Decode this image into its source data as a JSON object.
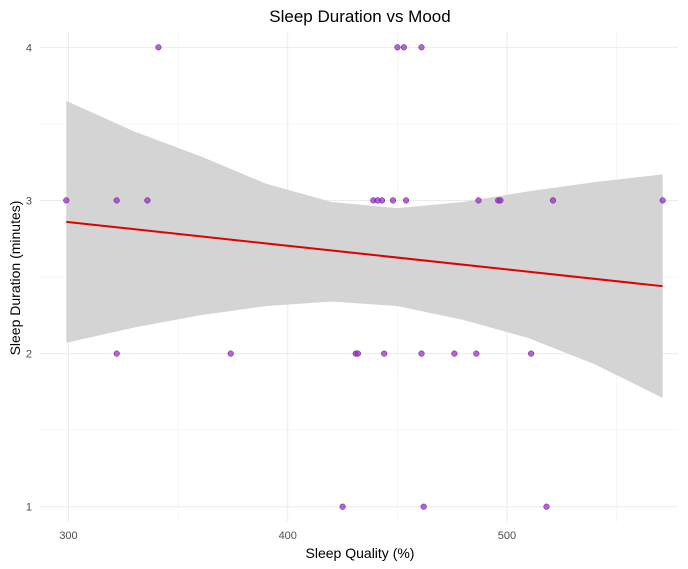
{
  "chart_data": {
    "type": "scatter",
    "title": "Sleep Duration vs Mood",
    "xlabel": "Sleep Quality (%)",
    "ylabel": "Sleep Duration (minutes)",
    "xlim": [
      287,
      578
    ],
    "ylim": [
      0.9,
      4.1
    ],
    "x_ticks": [
      300,
      400,
      500
    ],
    "y_ticks": [
      1,
      2,
      3,
      4
    ],
    "grid": true,
    "point_color": "#9b30c8",
    "line_color": "#e00000",
    "band_color": "#d4d4d4",
    "points": [
      {
        "x": 299,
        "y": 3
      },
      {
        "x": 322,
        "y": 3
      },
      {
        "x": 322,
        "y": 2
      },
      {
        "x": 336,
        "y": 3
      },
      {
        "x": 341,
        "y": 4
      },
      {
        "x": 374,
        "y": 2
      },
      {
        "x": 425,
        "y": 1
      },
      {
        "x": 431,
        "y": 2
      },
      {
        "x": 432,
        "y": 2
      },
      {
        "x": 439,
        "y": 3
      },
      {
        "x": 441,
        "y": 3
      },
      {
        "x": 443,
        "y": 3
      },
      {
        "x": 444,
        "y": 2
      },
      {
        "x": 448,
        "y": 3
      },
      {
        "x": 450,
        "y": 4
      },
      {
        "x": 453,
        "y": 4
      },
      {
        "x": 454,
        "y": 3
      },
      {
        "x": 461,
        "y": 4
      },
      {
        "x": 461,
        "y": 2
      },
      {
        "x": 462,
        "y": 1
      },
      {
        "x": 476,
        "y": 2
      },
      {
        "x": 486,
        "y": 2
      },
      {
        "x": 487,
        "y": 3
      },
      {
        "x": 496,
        "y": 3
      },
      {
        "x": 497,
        "y": 3
      },
      {
        "x": 511,
        "y": 2
      },
      {
        "x": 518,
        "y": 1
      },
      {
        "x": 521,
        "y": 3
      },
      {
        "x": 571,
        "y": 3
      }
    ],
    "trend": {
      "x": [
        299,
        571
      ],
      "y": [
        2.86,
        2.44
      ]
    },
    "confidence_band": {
      "x": [
        299,
        330,
        360,
        390,
        420,
        450,
        480,
        510,
        540,
        571
      ],
      "lower": [
        2.07,
        2.17,
        2.25,
        2.31,
        2.34,
        2.31,
        2.22,
        2.1,
        1.93,
        1.71
      ],
      "upper": [
        3.65,
        3.45,
        3.29,
        3.11,
        2.99,
        2.95,
        2.99,
        3.06,
        3.12,
        3.17
      ]
    }
  }
}
